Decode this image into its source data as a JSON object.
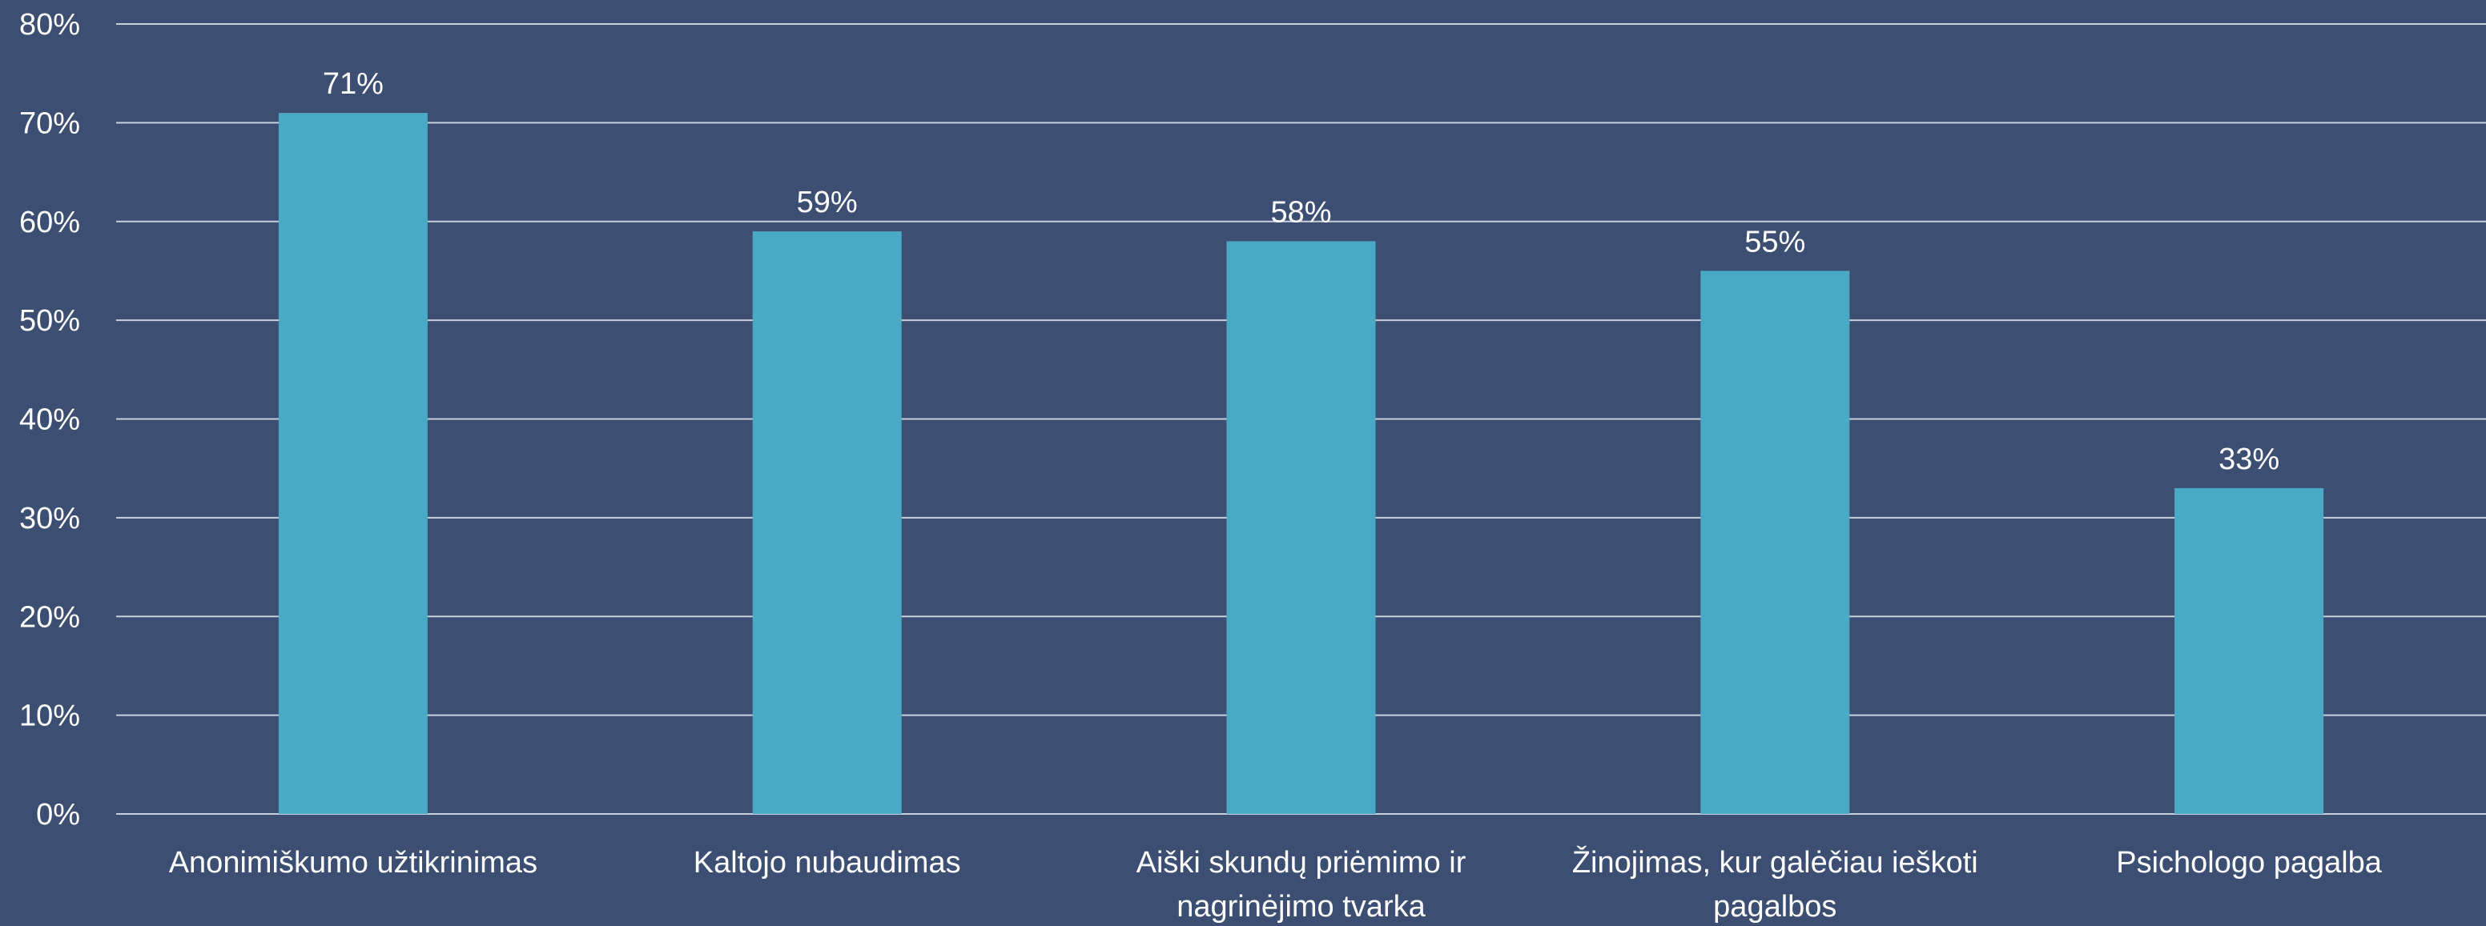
{
  "chart_data": {
    "type": "bar",
    "title": "",
    "xlabel": "",
    "ylabel": "",
    "categories": [
      [
        "Anonimiškumo užtikrinimas"
      ],
      [
        "Kaltojo nubaudimas"
      ],
      [
        "Aiški skundų priėmimo ir",
        "nagrinėjimo tvarka"
      ],
      [
        "Žinojimas, kur galėčiau ieškoti",
        "pagalbos"
      ],
      [
        "Psichologo pagalba"
      ]
    ],
    "values": [
      71,
      59,
      58,
      55,
      33
    ],
    "value_labels": [
      "71%",
      "59%",
      "58%",
      "55%",
      "33%"
    ],
    "ylim": [
      0,
      80
    ],
    "yticks": [
      0,
      10,
      20,
      30,
      40,
      50,
      60,
      70,
      80
    ],
    "ytick_labels": [
      "0%",
      "10%",
      "20%",
      "30%",
      "40%",
      "50%",
      "60%",
      "70%",
      "80%"
    ],
    "grid": true,
    "legend": "none"
  },
  "colors": {
    "background": "#3c4e72",
    "bar": "#4aaac6",
    "gridline": "#c9cfdb",
    "text": "#ffffff"
  }
}
